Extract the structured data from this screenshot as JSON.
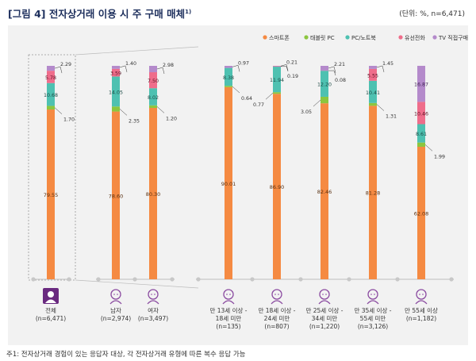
{
  "figure": {
    "label": "[그림 4]",
    "title": "전자상거래 이용 시 주 구매 매체",
    "title_note": "1)",
    "unit": "(단위: %, n=6,471)",
    "footnote": "주1: 전자상거래 경험이 있는 응답자 대상, 각 전자상거래 유형에 따른 복수 응답 가능"
  },
  "colors": {
    "smartphone": "#f58a42",
    "tablet": "#8cc63f",
    "pc": "#4ec1b1",
    "wired": "#ef6d8b",
    "tv": "#b48acb",
    "title": "#1c2e5c",
    "panel": "#f2f2f2",
    "icon_total": "#6a2a80",
    "icon_other": "#8a4aa0"
  },
  "chart_data": {
    "type": "bar",
    "stacked": true,
    "legend_position": "top-right",
    "categories": [
      {
        "label": "전체",
        "n": "(n=6,471)",
        "group": "total",
        "icon": "person-icon"
      },
      {
        "label": "남자",
        "n": "(n=2,974)",
        "group": "gender",
        "icon": "male-person-icon"
      },
      {
        "label": "여자",
        "n": "(n=3,497)",
        "group": "gender",
        "icon": "female-person-icon"
      },
      {
        "label": "만 13세 이상 -\n18세 미만",
        "n": "(n=135)",
        "group": "age",
        "icon": "teen-face-icon"
      },
      {
        "label": "만 18세 이상 -\n24세 미만",
        "n": "(n=807)",
        "group": "age",
        "icon": "youth-face-icon"
      },
      {
        "label": "만 25세 이상 -\n34세 미만",
        "n": "(n=1,220)",
        "group": "age",
        "icon": "adult-face-icon"
      },
      {
        "label": "만 35세 이상 -\n55세 미만",
        "n": "(n=3,126)",
        "group": "age",
        "icon": "middle-age-face-icon"
      },
      {
        "label": "만 55세 이상",
        "n": "(n=1,182)",
        "group": "age",
        "icon": "senior-face-icon"
      }
    ],
    "series": [
      {
        "name": "스마트폰",
        "color_key": "smartphone",
        "values": [
          79.55,
          78.6,
          80.3,
          90.01,
          86.9,
          82.46,
          81.28,
          62.08
        ]
      },
      {
        "name": "태블릿 PC",
        "color_key": "tablet",
        "values": [
          1.7,
          2.35,
          1.2,
          0.64,
          0.77,
          3.05,
          1.31,
          1.99
        ]
      },
      {
        "name": "PC/노트북",
        "color_key": "pc",
        "values": [
          10.68,
          14.05,
          8.02,
          8.38,
          11.94,
          12.2,
          10.41,
          8.61
        ]
      },
      {
        "name": "유선전화",
        "color_key": "wired",
        "values": [
          5.78,
          3.59,
          7.5,
          0.0,
          0.19,
          0.08,
          5.55,
          10.46
        ]
      },
      {
        "name": "TV 직접구매",
        "color_key": "tv",
        "values": [
          2.29,
          1.4,
          2.98,
          0.97,
          0.21,
          2.21,
          1.45,
          16.87
        ]
      }
    ]
  }
}
